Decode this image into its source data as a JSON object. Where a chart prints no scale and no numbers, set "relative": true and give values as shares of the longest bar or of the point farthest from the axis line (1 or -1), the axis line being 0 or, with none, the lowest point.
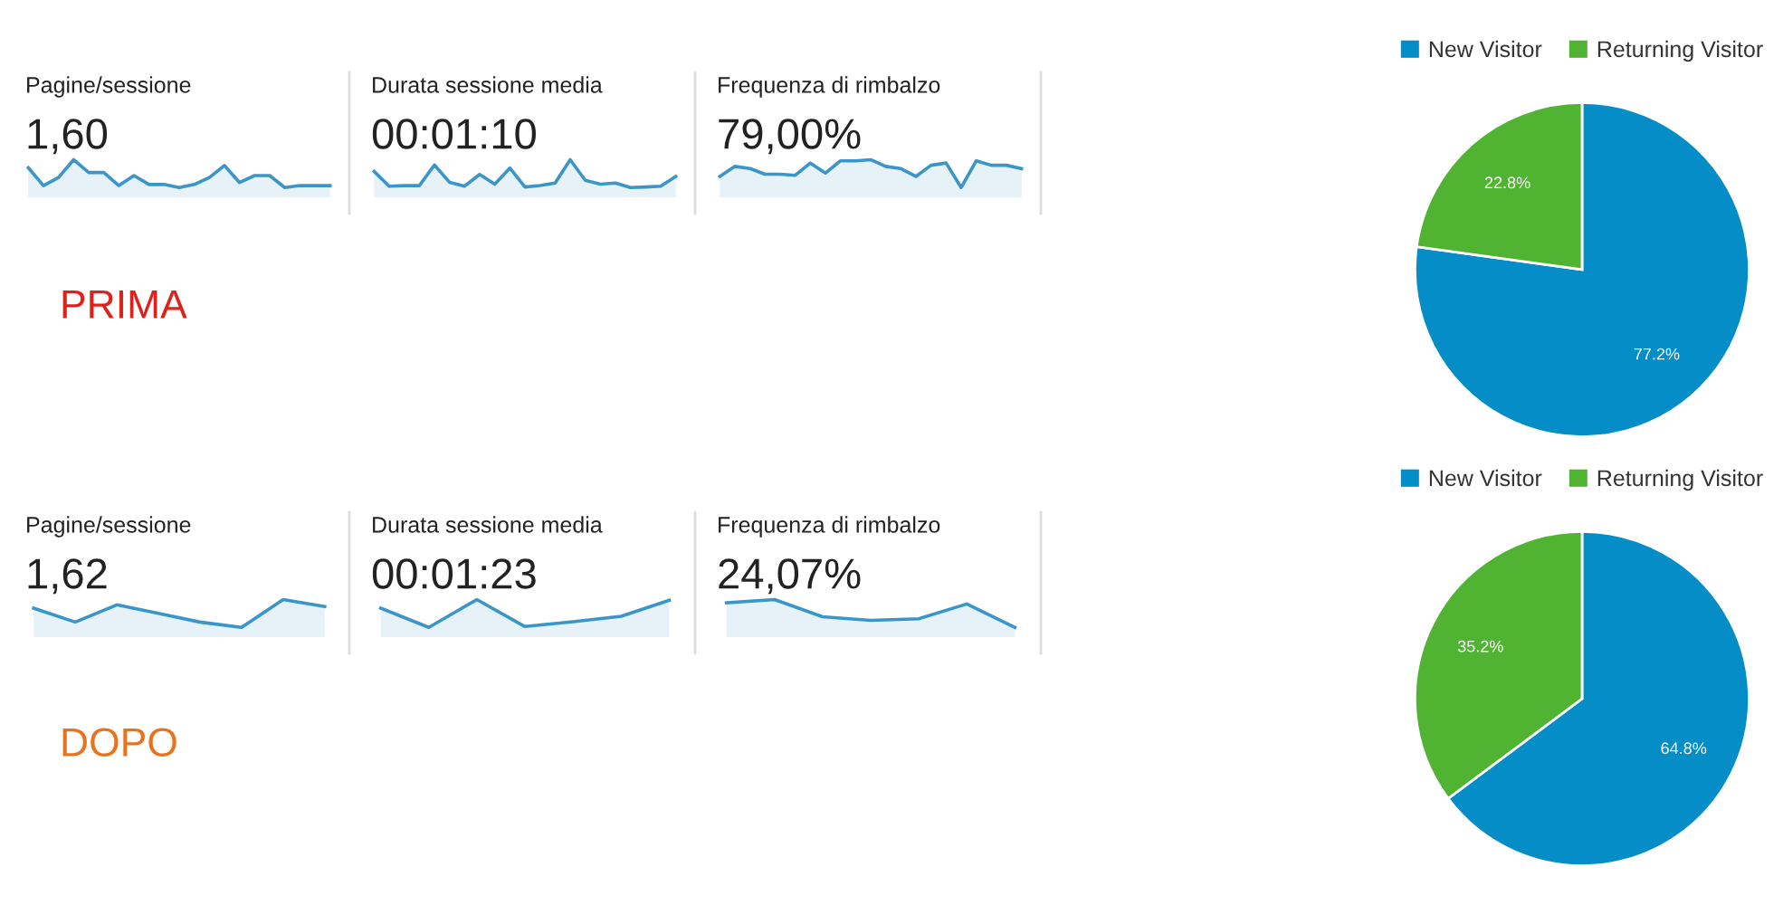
{
  "chart_data": [
    {
      "type": "area",
      "relative": true,
      "title": "Pagine/sessione",
      "subtitle": "1,60",
      "categories": [
        null,
        null,
        null,
        null,
        null,
        null,
        null,
        null,
        null,
        null,
        null,
        null,
        null,
        null,
        null,
        null,
        null,
        null,
        null,
        null,
        null
      ],
      "series": [
        {
          "color": "#3a96c8",
          "values": [
            0.71,
            0.07,
            0.36,
            1,
            0.54,
            0.54,
            0.07,
            0.43,
            0.11,
            0.11,
            0,
            0.11,
            0.36,
            0.79,
            0.18,
            0.43,
            0.43,
            0,
            0.07,
            0.07,
            0.07
          ]
        }
      ]
    },
    {
      "type": "area",
      "relative": true,
      "title": "Durata sessione media",
      "subtitle": "00:01:10",
      "categories": [
        null,
        null,
        null,
        null,
        null,
        null,
        null,
        null,
        null,
        null,
        null,
        null,
        null,
        null,
        null,
        null,
        null,
        null,
        null,
        null,
        null
      ],
      "series": [
        {
          "color": "#3a96c8",
          "values": [
            0.58,
            0.05,
            0.07,
            0.07,
            0.81,
            0.19,
            0.05,
            0.47,
            0.12,
            0.7,
            0.02,
            0.07,
            0.16,
            1,
            0.26,
            0.12,
            0.16,
            0,
            0.02,
            0.05,
            0.4
          ]
        }
      ]
    },
    {
      "type": "area",
      "relative": true,
      "title": "Frequenza di rimbalzo",
      "subtitle": "79,00%",
      "categories": [
        null,
        null,
        null,
        null,
        null,
        null,
        null,
        null,
        null,
        null,
        null,
        null,
        null,
        null,
        null,
        null,
        null,
        null,
        null,
        null,
        null
      ],
      "series": [
        {
          "color": "#3a96c8",
          "values": [
            0.4,
            0.76,
            0.68,
            0.48,
            0.48,
            0.44,
            0.88,
            0.52,
            0.96,
            0.96,
            1,
            0.76,
            0.68,
            0.4,
            0.8,
            0.88,
            0,
            0.96,
            0.8,
            0.8,
            0.68
          ]
        }
      ]
    },
    {
      "type": "pie",
      "categories": [
        "New Visitor",
        "Returning Visitor"
      ],
      "values": [
        77.2,
        22.8
      ],
      "colors": [
        "#058dc7",
        "#50b432"
      ],
      "value_labels": [
        "77.2%",
        "22.8%"
      ],
      "legend": "top"
    },
    {
      "type": "other",
      "title": "PRIMA",
      "color": "#e0201b"
    },
    {
      "type": "area",
      "relative": true,
      "title": "Pagine/sessione",
      "subtitle": "1,62",
      "categories": [
        null,
        null,
        null,
        null,
        null,
        null,
        null,
        null
      ],
      "series": [
        {
          "color": "#3a96c8",
          "values": [
            0.69,
            0.19,
            0.81,
            0.5,
            0.19,
            0,
            1,
            0.75
          ]
        }
      ]
    },
    {
      "type": "area",
      "relative": true,
      "title": "Durata sessione media",
      "subtitle": "00:01:23",
      "categories": [
        null,
        null,
        null,
        null,
        null,
        null,
        null
      ],
      "series": [
        {
          "color": "#3a96c8",
          "values": [
            0.69,
            0,
            1,
            0.03,
            0.2,
            0.4,
            0.97
          ]
        }
      ]
    },
    {
      "type": "area",
      "relative": true,
      "title": "Frequenza di rimbalzo",
      "subtitle": "24,07%",
      "categories": [
        null,
        null,
        null,
        null,
        null,
        null,
        null
      ],
      "series": [
        {
          "color": "#3a96c8",
          "values": [
            0.88,
            1,
            0.38,
            0.25,
            0.31,
            0.84,
            0
          ]
        }
      ]
    },
    {
      "type": "pie",
      "categories": [
        "New Visitor",
        "Returning Visitor"
      ],
      "values": [
        64.8,
        35.2
      ],
      "colors": [
        "#058dc7",
        "#50b432"
      ],
      "value_labels": [
        "64.8%",
        "35.2%"
      ],
      "legend": "top"
    },
    {
      "type": "other",
      "title": "DOPO",
      "color": "#e8731c"
    }
  ]
}
